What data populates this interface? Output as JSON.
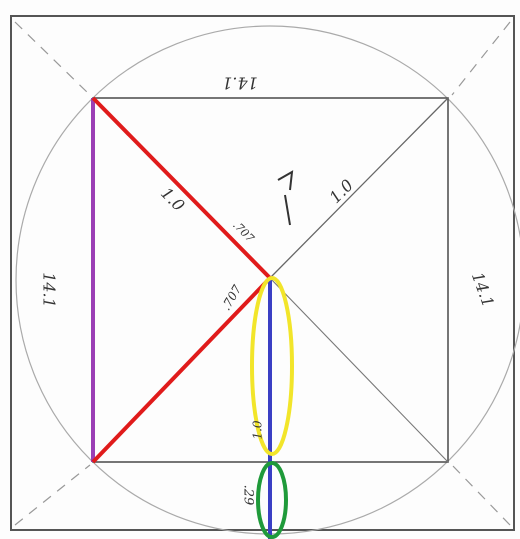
{
  "labels": {
    "top_side": "14.1",
    "left_side": "14.1",
    "right_side": "14.1",
    "upper_left_diagonal": "1.0",
    "upper_right_diagonal": "1.0",
    "center_short": ".707",
    "lower_left_diagonal": ".707",
    "blue_segment": "1.0",
    "bottom_segment": ".29"
  }
}
